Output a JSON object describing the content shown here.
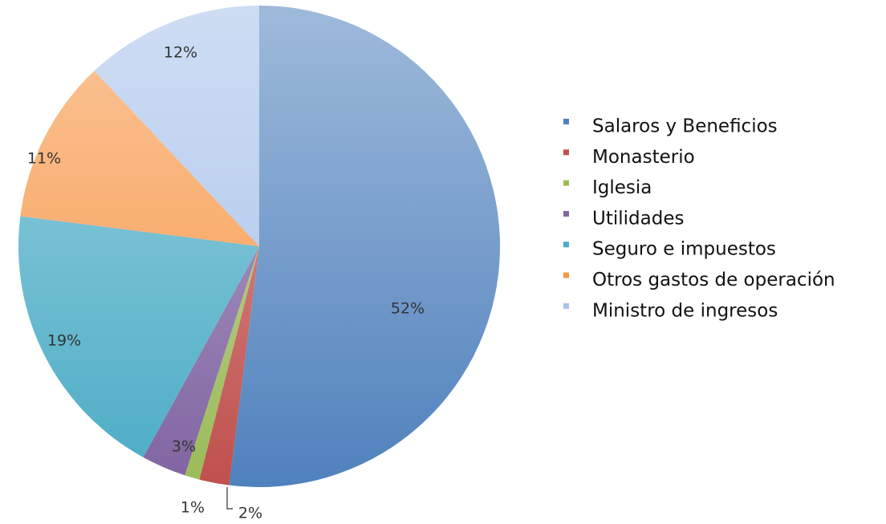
{
  "chart_data": {
    "type": "pie",
    "categories": [
      "Salaros y Beneficios",
      "Monasterio",
      "Iglesia",
      "Utilidades",
      "Seguro e impuestos",
      "Otros gastos de operación",
      "Ministro de ingresos"
    ],
    "values": [
      52,
      2,
      1,
      3,
      19,
      11,
      12
    ],
    "value_labels": [
      "52%",
      "2%",
      "1%",
      "3%",
      "19%",
      "11%",
      "12%"
    ],
    "colors": [
      "#4f81bd",
      "#c0504d",
      "#9bbb59",
      "#8064a2",
      "#4bacc6",
      "#f79646",
      "#a7c1ea"
    ],
    "legend": "right"
  }
}
